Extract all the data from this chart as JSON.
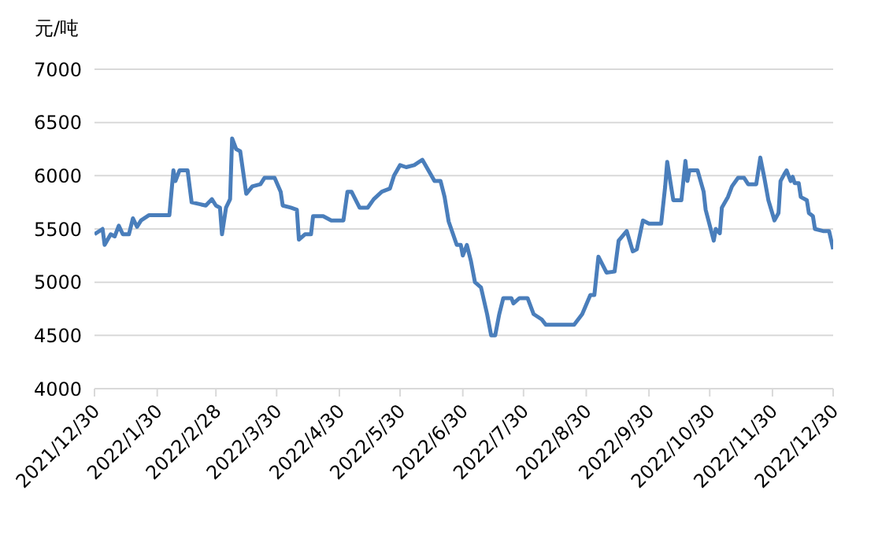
{
  "chart_data": {
    "type": "line",
    "ylabel": "元/吨",
    "grid": "y",
    "legend": false,
    "marker": "none",
    "line_style": "solid",
    "xlim": [
      "2021-12-30",
      "2022-12-30"
    ],
    "xticks": [
      {
        "value": "2021-12-30",
        "label": "2021/12/30"
      },
      {
        "value": "2022-01-30",
        "label": "2022/1/30"
      },
      {
        "value": "2022-02-28",
        "label": "2022/2/28"
      },
      {
        "value": "2022-03-30",
        "label": "2022/3/30"
      },
      {
        "value": "2022-04-30",
        "label": "2022/4/30"
      },
      {
        "value": "2022-05-30",
        "label": "2022/5/30"
      },
      {
        "value": "2022-06-30",
        "label": "2022/6/30"
      },
      {
        "value": "2022-07-30",
        "label": "2022/7/30"
      },
      {
        "value": "2022-08-30",
        "label": "2022/8/30"
      },
      {
        "value": "2022-09-30",
        "label": "2022/9/30"
      },
      {
        "value": "2022-10-30",
        "label": "2022/10/30"
      },
      {
        "value": "2022-11-30",
        "label": "2022/11/30"
      },
      {
        "value": "2022-12-30",
        "label": "2022/12/30"
      }
    ],
    "ylim": [
      4000,
      7000
    ],
    "yticks": [
      4000,
      4500,
      5000,
      5500,
      6000,
      6500,
      7000
    ],
    "x": [
      "2021-12-30",
      "2022-01-03",
      "2022-01-04",
      "2022-01-07",
      "2022-01-09",
      "2022-01-11",
      "2022-01-13",
      "2022-01-16",
      "2022-01-18",
      "2022-01-20",
      "2022-01-22",
      "2022-01-26",
      "2022-02-05",
      "2022-02-07",
      "2022-02-08",
      "2022-02-10",
      "2022-02-14",
      "2022-02-16",
      "2022-02-23",
      "2022-02-26",
      "2022-02-28",
      "2022-03-02",
      "2022-03-03",
      "2022-03-05",
      "2022-03-07",
      "2022-03-08",
      "2022-03-10",
      "2022-03-12",
      "2022-03-15",
      "2022-03-18",
      "2022-03-22",
      "2022-03-24",
      "2022-03-29",
      "2022-04-01",
      "2022-04-02",
      "2022-04-06",
      "2022-04-09",
      "2022-04-10",
      "2022-04-13",
      "2022-04-16",
      "2022-04-17",
      "2022-04-22",
      "2022-04-26",
      "2022-05-02",
      "2022-05-04",
      "2022-05-06",
      "2022-05-10",
      "2022-05-14",
      "2022-05-17",
      "2022-05-21",
      "2022-05-25",
      "2022-05-27",
      "2022-05-30",
      "2022-06-02",
      "2022-06-06",
      "2022-06-10",
      "2022-06-13",
      "2022-06-16",
      "2022-06-19",
      "2022-06-21",
      "2022-06-23",
      "2022-06-27",
      "2022-06-29",
      "2022-06-30",
      "2022-07-02",
      "2022-07-04",
      "2022-07-06",
      "2022-07-09",
      "2022-07-12",
      "2022-07-14",
      "2022-07-16",
      "2022-07-18",
      "2022-07-20",
      "2022-07-24",
      "2022-07-25",
      "2022-07-28",
      "2022-08-01",
      "2022-08-04",
      "2022-08-08",
      "2022-08-10",
      "2022-08-24",
      "2022-08-28",
      "2022-09-01",
      "2022-09-03",
      "2022-09-05",
      "2022-09-09",
      "2022-09-13",
      "2022-09-15",
      "2022-09-19",
      "2022-09-22",
      "2022-09-24",
      "2022-09-27",
      "2022-09-30",
      "2022-10-06",
      "2022-10-08",
      "2022-10-09",
      "2022-10-12",
      "2022-10-16",
      "2022-10-18",
      "2022-10-19",
      "2022-10-20",
      "2022-10-24",
      "2022-10-27",
      "2022-10-28",
      "2022-11-01",
      "2022-11-02",
      "2022-11-04",
      "2022-11-05",
      "2022-11-08",
      "2022-11-10",
      "2022-11-13",
      "2022-11-16",
      "2022-11-18",
      "2022-11-22",
      "2022-11-24",
      "2022-11-26",
      "2022-11-28",
      "2022-12-01",
      "2022-12-03",
      "2022-12-04",
      "2022-12-06",
      "2022-12-07",
      "2022-12-09",
      "2022-12-10",
      "2022-12-11",
      "2022-12-13",
      "2022-12-14",
      "2022-12-17",
      "2022-12-18",
      "2022-12-20",
      "2022-12-21",
      "2022-12-25",
      "2022-12-28",
      "2022-12-30"
    ],
    "series": [
      {
        "color": "#4a7ebb",
        "values": [
          5450,
          5500,
          5350,
          5450,
          5430,
          5530,
          5450,
          5450,
          5600,
          5520,
          5580,
          5630,
          5630,
          6050,
          5950,
          6050,
          6050,
          5750,
          5720,
          5780,
          5720,
          5700,
          5450,
          5700,
          5780,
          6350,
          6250,
          6230,
          5830,
          5900,
          5920,
          5980,
          5980,
          5850,
          5720,
          5700,
          5680,
          5400,
          5450,
          5450,
          5620,
          5620,
          5580,
          5580,
          5850,
          5850,
          5700,
          5700,
          5780,
          5850,
          5880,
          6000,
          6100,
          6080,
          6100,
          6150,
          6050,
          5950,
          5950,
          5800,
          5570,
          5350,
          5350,
          5250,
          5350,
          5200,
          5000,
          4950,
          4700,
          4500,
          4500,
          4700,
          4850,
          4850,
          4800,
          4850,
          4850,
          4700,
          4650,
          4600,
          4600,
          4700,
          4880,
          4880,
          5240,
          5090,
          5100,
          5390,
          5480,
          5290,
          5310,
          5580,
          5550,
          5550,
          5900,
          6130,
          5770,
          5770,
          6140,
          5950,
          6050,
          6050,
          5850,
          5680,
          5390,
          5500,
          5460,
          5700,
          5800,
          5900,
          5980,
          5980,
          5920,
          5920,
          6170,
          5980,
          5770,
          5580,
          5650,
          5950,
          6020,
          6050,
          5950,
          5990,
          5930,
          5930,
          5800,
          5770,
          5650,
          5620,
          5500,
          5480,
          5480,
          5310
        ]
      }
    ]
  }
}
